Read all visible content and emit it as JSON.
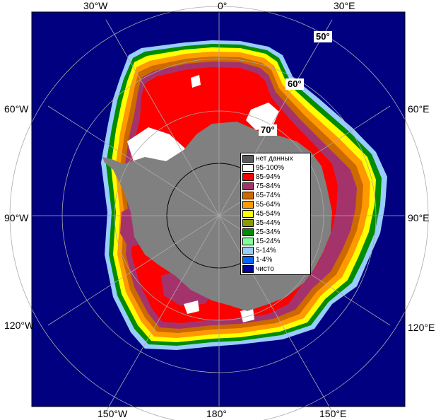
{
  "top_labels": [
    "30°W",
    "0°",
    "30°E"
  ],
  "left_labels": [
    "60°W",
    "90°W",
    "120°W"
  ],
  "right_labels": [
    "60°E",
    "90°E",
    "120°E"
  ],
  "bottom_labels": [
    "150°W",
    "180°",
    "150°E"
  ],
  "lat_labels": [
    "50°",
    "60°",
    "70°"
  ],
  "legend": [
    {
      "label": "нет данных",
      "color": "#595959"
    },
    {
      "label": "95-100%",
      "color": "#ffffff"
    },
    {
      "label": "85-94%",
      "color": "#ff0000"
    },
    {
      "label": "75-84%",
      "color": "#a5336b"
    },
    {
      "label": "65-74%",
      "color": "#cc6a00"
    },
    {
      "label": "55-64%",
      "color": "#ff9900"
    },
    {
      "label": "45-54%",
      "color": "#ffff00"
    },
    {
      "label": "35-44%",
      "color": "#8c9900"
    },
    {
      "label": "25-34%",
      "color": "#008c00"
    },
    {
      "label": "15-24%",
      "color": "#80ff9a"
    },
    {
      "label": "5-14%",
      "color": "#99ccff"
    },
    {
      "label": "1-4%",
      "color": "#0066ff"
    },
    {
      "label": "чисто",
      "color": "#000099"
    }
  ],
  "colors": {
    "ocean": "#000080",
    "land": "#808080",
    "grid": "#aaaaaa",
    "no_data": "#595959"
  }
}
